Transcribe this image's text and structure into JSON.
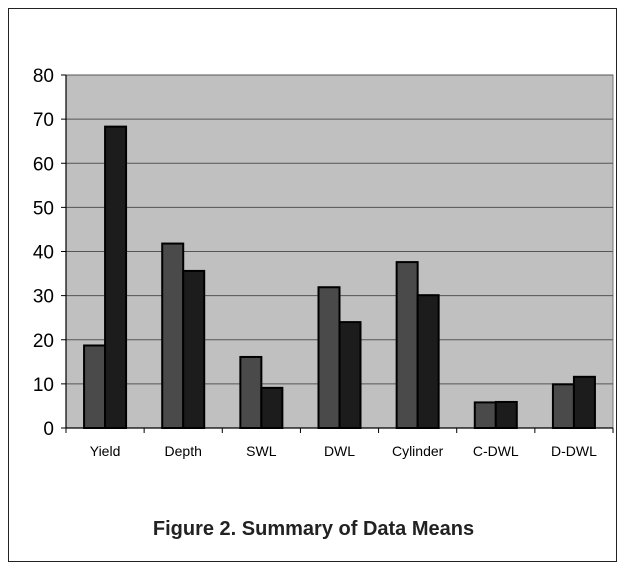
{
  "figure": {
    "caption": "Figure 2. Summary of Data Means"
  },
  "colors": {
    "plot_background": "#c0c0c0",
    "series_1": "#4a4a4a",
    "series_2": "#1c1c1c",
    "gridline": "#555555"
  },
  "chart_data": {
    "type": "bar",
    "categories": [
      "Yield",
      "Depth",
      "SWL",
      "DWL",
      "Cylinder",
      "C-DWL",
      "D-DWL"
    ],
    "series": [
      {
        "values": [
          18.7,
          41.8,
          16.1,
          31.9,
          37.6,
          5.8,
          9.9
        ]
      },
      {
        "values": [
          68.3,
          35.6,
          9.1,
          24.0,
          30.1,
          5.9,
          11.6
        ]
      }
    ],
    "ylim": [
      0,
      80
    ],
    "yticks": [
      0,
      10,
      20,
      30,
      40,
      50,
      60,
      70,
      80
    ],
    "grid": true,
    "legend": "none"
  }
}
